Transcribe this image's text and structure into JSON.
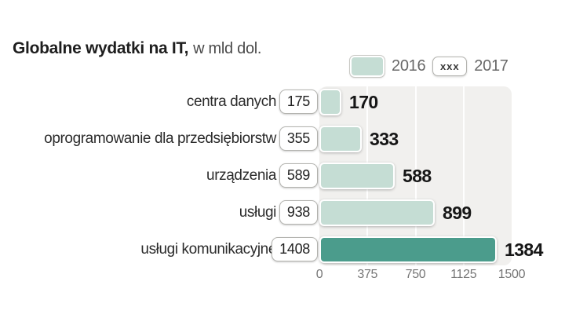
{
  "title": {
    "bold": "Globalne wydatki na IT,",
    "unit": "w mld dol."
  },
  "legend": {
    "items": [
      {
        "label": "2016",
        "type": "filled-swatch"
      },
      {
        "label": "2017",
        "type": "boxed-value",
        "swatch_text": "xxx"
      }
    ]
  },
  "chart_data": {
    "type": "bar",
    "orientation": "horizontal",
    "title": "Globalne wydatki na IT, w mld dol.",
    "categories": [
      "centra danych",
      "oprogramowanie dla przedsiębiorstw",
      "urządzenia",
      "usługi",
      "usługi komunikacyjne"
    ],
    "series": [
      {
        "name": "2016",
        "values": [
          170,
          333,
          588,
          899,
          1384
        ],
        "display": "teal bars with bold labels at bar end"
      },
      {
        "name": "2017",
        "values": [
          175,
          355,
          589,
          938,
          1408
        ],
        "display": "white boxed labels left of bars"
      }
    ],
    "x_ticks": [
      0,
      375,
      750,
      1125,
      1500
    ],
    "xlim": [
      0,
      1500
    ],
    "grid": true,
    "legend_position": "top-right",
    "highlight_index": 4
  },
  "colors": {
    "bar_light": "#c5ddd4",
    "bar_dark": "#4b9c8c",
    "panel": "#f1f0ee"
  }
}
